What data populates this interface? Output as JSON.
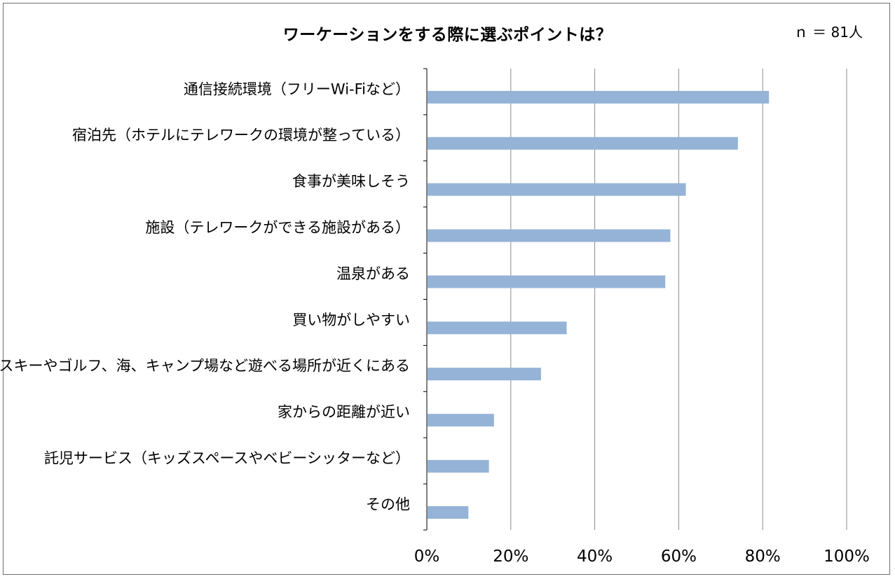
{
  "chart_data": {
    "type": "bar",
    "orientation": "horizontal",
    "title": "ワーケーションをする際に選ぶポイントは？",
    "sample_size_label": "ｎ ＝ 81人",
    "categories": [
      "通信接続環境（フリーWi-Fiなど）",
      "宿泊先（ホテルにテレワークの環境が整っている）",
      "食事が美味しそう",
      "施設（テレワークができる施設がある）",
      "温泉がある",
      "買い物がしやすい",
      "スキーやゴルフ、海、キャンプ場など遊べる場所が近くにある",
      "家からの距離が近い",
      "託児サービス（キッズスペースやベビーシッターなど）",
      "その他"
    ],
    "values": [
      81.5,
      74.1,
      61.7,
      58.0,
      56.8,
      33.3,
      27.2,
      16.0,
      14.8,
      9.9
    ],
    "xlim": [
      0,
      100
    ],
    "x_ticks": [
      0,
      20,
      40,
      60,
      80,
      100
    ],
    "x_tick_labels": [
      "0%",
      "20%",
      "40%",
      "60%",
      "80%",
      "100%"
    ],
    "grid": true,
    "colors": {
      "bar": "#95b3d7",
      "gridline": "#8c8c8c",
      "axis": "#000000"
    }
  }
}
